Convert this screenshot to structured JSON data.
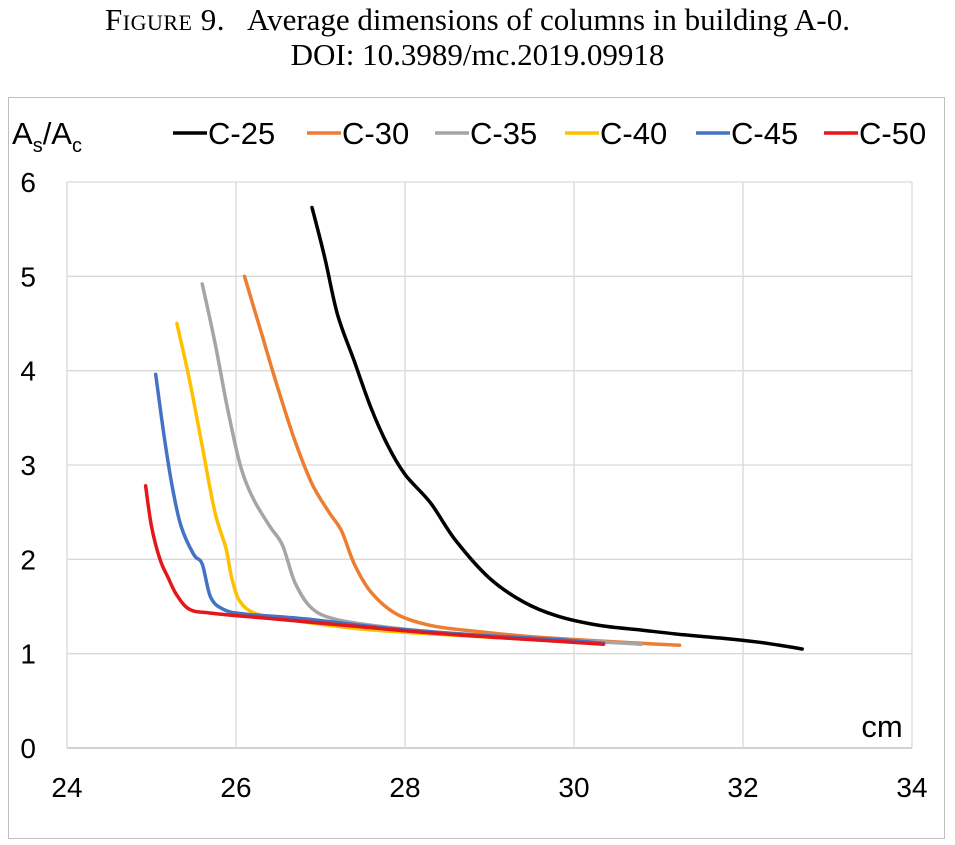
{
  "caption": {
    "figure_label": "Figure 9.",
    "title": "Average dimensions of columns in building A-0.",
    "doi": "DOI: 10.3989/mc.2019.09918"
  },
  "chart_data": {
    "type": "line",
    "xlabel": "cm",
    "ylabel": "As/Ac",
    "ylabel_main": "A",
    "ylabel_sub1": "s",
    "ylabel_sep": "/A",
    "ylabel_sub2": "c",
    "xlim": [
      24,
      34
    ],
    "ylim": [
      0,
      6
    ],
    "xticks": [
      24,
      26,
      28,
      30,
      32,
      34
    ],
    "yticks": [
      0,
      1,
      2,
      3,
      4,
      5,
      6
    ],
    "grid": true,
    "legend_position": "top",
    "series": [
      {
        "name": "C-25",
        "color": "#000000",
        "points": [
          [
            26.9,
            5.73
          ],
          [
            27.05,
            5.2
          ],
          [
            27.2,
            4.6
          ],
          [
            27.4,
            4.1
          ],
          [
            27.6,
            3.6
          ],
          [
            27.8,
            3.2
          ],
          [
            28.0,
            2.9
          ],
          [
            28.3,
            2.6
          ],
          [
            28.6,
            2.2
          ],
          [
            29.0,
            1.8
          ],
          [
            29.4,
            1.55
          ],
          [
            29.8,
            1.4
          ],
          [
            30.3,
            1.3
          ],
          [
            30.8,
            1.25
          ],
          [
            31.3,
            1.2
          ],
          [
            31.8,
            1.16
          ],
          [
            32.2,
            1.12
          ],
          [
            32.5,
            1.08
          ],
          [
            32.7,
            1.05
          ]
        ]
      },
      {
        "name": "C-30",
        "color": "#ED7D31",
        "points": [
          [
            26.1,
            5.0
          ],
          [
            26.3,
            4.4
          ],
          [
            26.5,
            3.8
          ],
          [
            26.7,
            3.25
          ],
          [
            26.9,
            2.8
          ],
          [
            27.1,
            2.5
          ],
          [
            27.25,
            2.3
          ],
          [
            27.4,
            1.95
          ],
          [
            27.6,
            1.65
          ],
          [
            27.9,
            1.42
          ],
          [
            28.3,
            1.3
          ],
          [
            28.8,
            1.24
          ],
          [
            29.5,
            1.18
          ],
          [
            30.2,
            1.14
          ],
          [
            30.8,
            1.11
          ],
          [
            31.25,
            1.09
          ]
        ]
      },
      {
        "name": "C-35",
        "color": "#A5A5A5",
        "points": [
          [
            25.6,
            4.92
          ],
          [
            25.75,
            4.3
          ],
          [
            25.9,
            3.6
          ],
          [
            26.05,
            3.0
          ],
          [
            26.2,
            2.65
          ],
          [
            26.4,
            2.35
          ],
          [
            26.55,
            2.15
          ],
          [
            26.7,
            1.75
          ],
          [
            26.9,
            1.48
          ],
          [
            27.2,
            1.36
          ],
          [
            27.8,
            1.28
          ],
          [
            28.5,
            1.22
          ],
          [
            29.3,
            1.17
          ],
          [
            30.2,
            1.13
          ],
          [
            30.8,
            1.1
          ]
        ]
      },
      {
        "name": "C-40",
        "color": "#FFC000",
        "points": [
          [
            25.3,
            4.5
          ],
          [
            25.45,
            3.9
          ],
          [
            25.6,
            3.2
          ],
          [
            25.75,
            2.5
          ],
          [
            25.88,
            2.12
          ],
          [
            25.95,
            1.8
          ],
          [
            26.05,
            1.55
          ],
          [
            26.25,
            1.42
          ],
          [
            26.7,
            1.35
          ],
          [
            27.5,
            1.26
          ],
          [
            28.5,
            1.2
          ],
          [
            29.5,
            1.15
          ],
          [
            30.35,
            1.11
          ]
        ]
      },
      {
        "name": "C-45",
        "color": "#4472C4",
        "points": [
          [
            25.05,
            3.96
          ],
          [
            25.15,
            3.3
          ],
          [
            25.25,
            2.75
          ],
          [
            25.35,
            2.35
          ],
          [
            25.5,
            2.05
          ],
          [
            25.6,
            1.95
          ],
          [
            25.7,
            1.6
          ],
          [
            25.85,
            1.47
          ],
          [
            26.1,
            1.42
          ],
          [
            26.8,
            1.37
          ],
          [
            27.8,
            1.27
          ],
          [
            28.8,
            1.2
          ],
          [
            29.8,
            1.15
          ],
          [
            30.35,
            1.11
          ]
        ]
      },
      {
        "name": "C-50",
        "color": "#E3171C",
        "points": [
          [
            24.93,
            2.78
          ],
          [
            25.0,
            2.35
          ],
          [
            25.1,
            2.0
          ],
          [
            25.2,
            1.8
          ],
          [
            25.3,
            1.62
          ],
          [
            25.45,
            1.47
          ],
          [
            25.7,
            1.43
          ],
          [
            26.3,
            1.38
          ],
          [
            27.3,
            1.3
          ],
          [
            28.3,
            1.22
          ],
          [
            29.3,
            1.16
          ],
          [
            30.35,
            1.1
          ]
        ]
      }
    ]
  }
}
